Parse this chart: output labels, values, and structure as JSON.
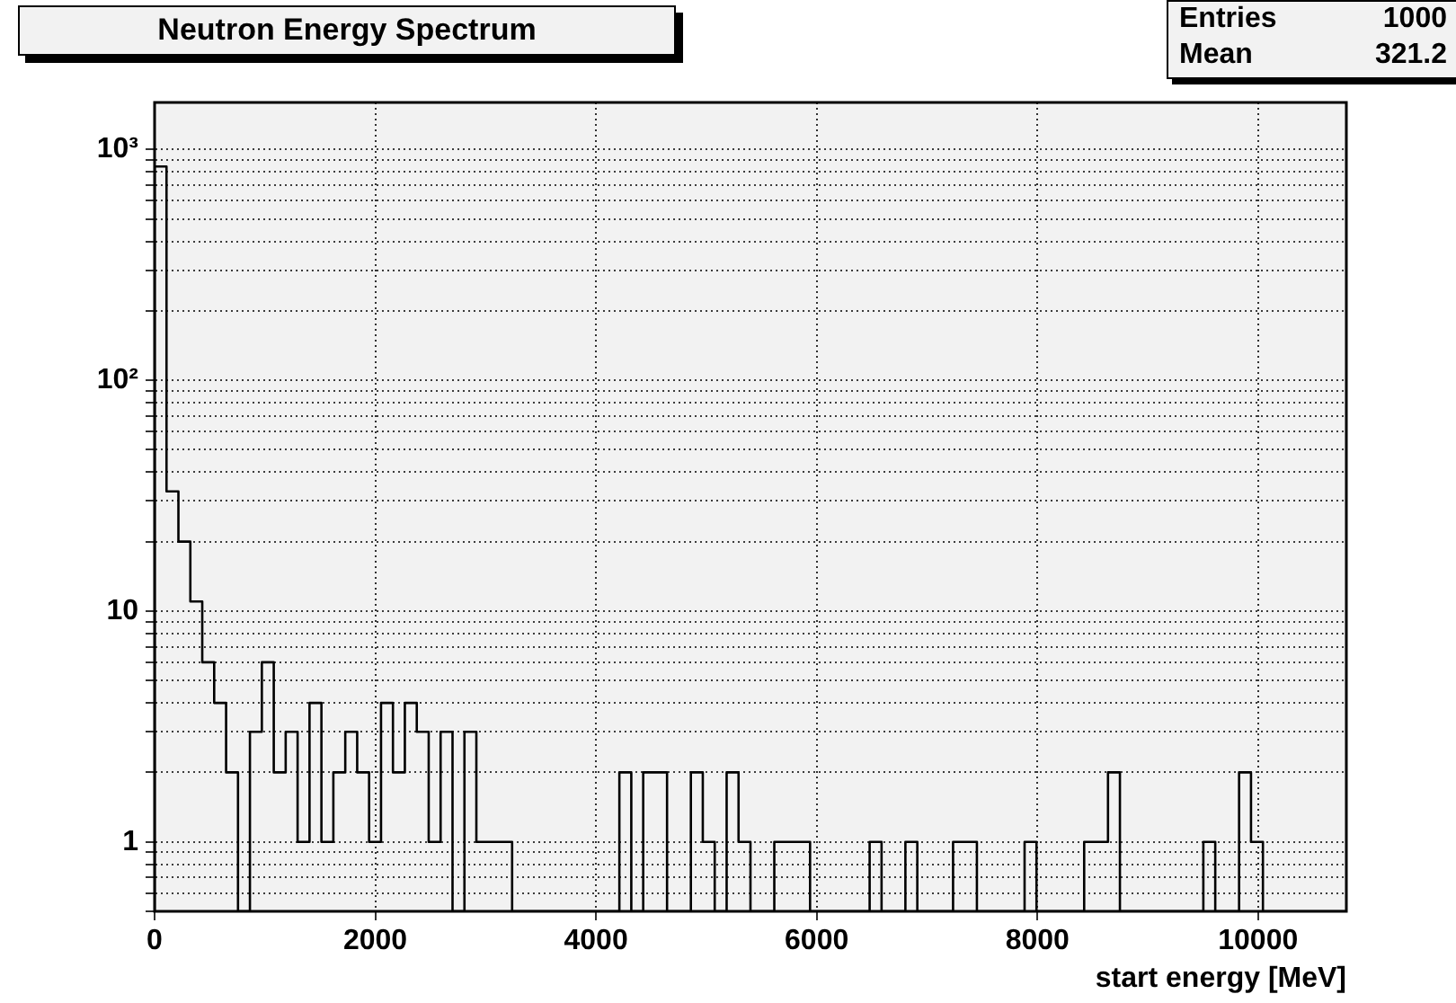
{
  "chart_data": {
    "type": "histogram",
    "title": "Neutron Energy Spectrum",
    "xlabel": "start energy [MeV]",
    "annotations": [
      "Entries 1000",
      "Mean 321.2"
    ],
    "bins": [
      0,
      108,
      216,
      324,
      432,
      540,
      648,
      756,
      864,
      972,
      1080,
      1188,
      1296,
      1404,
      1512,
      1620,
      1728,
      1836,
      1944,
      2052,
      2160,
      2268,
      2376,
      2484,
      2592,
      2700,
      2808,
      2916,
      3024,
      3132,
      3240,
      3348,
      3456,
      3564,
      3672,
      3780,
      3888,
      3996,
      4104,
      4212,
      4320,
      4428,
      4536,
      4644,
      4752,
      4860,
      4968,
      5076,
      5184,
      5292,
      5400,
      5508,
      5616,
      5724,
      5832,
      5940,
      6048,
      6156,
      6264,
      6372,
      6480,
      6588,
      6696,
      6804,
      6912,
      7020,
      7128,
      7236,
      7344,
      7452,
      7560,
      7668,
      7776,
      7884,
      7992,
      8100,
      8208,
      8316,
      8424,
      8532,
      8640,
      8748,
      8856,
      8964,
      9072,
      9180,
      9288,
      9396,
      9504,
      9612,
      9720,
      9828,
      9936,
      10044,
      10152,
      10260,
      10368,
      10476,
      10584,
      10692,
      10800
    ],
    "values": [
      845,
      33,
      20,
      11,
      6,
      4,
      2,
      null,
      3,
      6,
      2,
      3,
      1,
      4,
      1,
      2,
      3,
      2,
      1,
      4,
      2,
      4,
      3,
      1,
      3,
      null,
      3,
      1,
      1,
      1,
      null,
      null,
      null,
      null,
      null,
      null,
      null,
      null,
      null,
      2,
      null,
      2,
      2,
      null,
      null,
      2,
      1,
      null,
      2,
      1,
      null,
      null,
      1,
      1,
      1,
      null,
      null,
      null,
      null,
      null,
      1,
      null,
      null,
      1,
      null,
      null,
      null,
      1,
      1,
      null,
      null,
      null,
      null,
      1,
      null,
      null,
      null,
      null,
      1,
      1,
      2,
      null,
      null,
      null,
      null,
      null,
      null,
      null,
      1,
      null,
      null,
      2,
      1,
      null,
      null,
      null,
      null,
      null,
      null,
      null
    ],
    "color": "#000000",
    "xlim": [
      0,
      10800
    ],
    "xticks": [
      0,
      2000,
      4000,
      6000,
      8000,
      10000
    ],
    "ylim": [
      0.5,
      1600
    ],
    "log": true,
    "yticks": [
      {
        "value": 0.5,
        "label": null
      },
      {
        "value": 0.6,
        "label": null
      },
      {
        "value": 0.7,
        "label": null
      },
      {
        "value": 0.8,
        "label": null
      },
      {
        "value": 0.9,
        "label": null
      },
      1,
      {
        "value": 2,
        "label": null
      },
      {
        "value": 3,
        "label": null
      },
      {
        "value": 4,
        "label": null
      },
      {
        "value": 5,
        "label": null
      },
      {
        "value": 6,
        "label": null
      },
      {
        "value": 7,
        "label": null
      },
      {
        "value": 8,
        "label": null
      },
      {
        "value": 9,
        "label": null
      },
      10,
      {
        "value": 20,
        "label": null
      },
      {
        "value": 30,
        "label": null
      },
      {
        "value": 40,
        "label": null
      },
      {
        "value": 50,
        "label": null
      },
      {
        "value": 60,
        "label": null
      },
      {
        "value": 70,
        "label": null
      },
      {
        "value": 80,
        "label": null
      },
      {
        "value": 90,
        "label": null
      },
      {
        "value": 100,
        "label": "10²"
      },
      {
        "value": 200,
        "label": null
      },
      {
        "value": 300,
        "label": null
      },
      {
        "value": 400,
        "label": null
      },
      {
        "value": 500,
        "label": null
      },
      {
        "value": 600,
        "label": null
      },
      {
        "value": 700,
        "label": null
      },
      {
        "value": 800,
        "label": null
      },
      {
        "value": 900,
        "label": null
      },
      {
        "value": 1000,
        "label": "10³"
      }
    ],
    "grid": true
  }
}
